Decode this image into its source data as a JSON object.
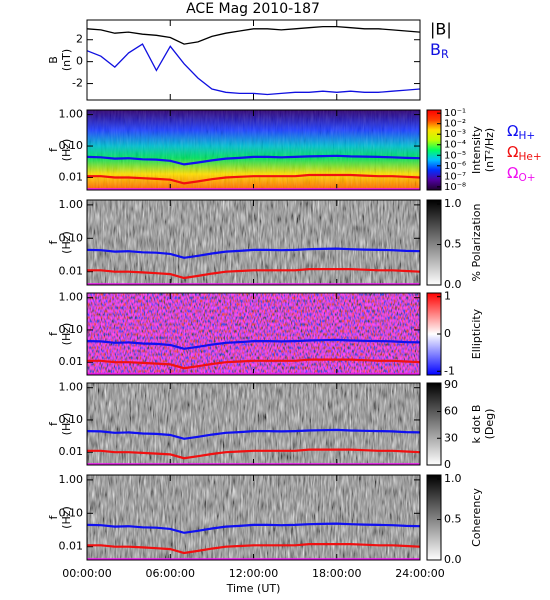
{
  "chart_data": [
    {
      "type": "line",
      "title": "ACE Mag 2010-187",
      "ylabel": [
        "B",
        "(nT)"
      ],
      "xlim": [
        0,
        24
      ],
      "ylim": [
        -3.5,
        3.8
      ],
      "yticks": [
        -2,
        0,
        2
      ],
      "x": [
        0,
        1,
        2,
        3,
        4,
        5,
        6,
        7,
        8,
        9,
        10,
        11,
        12,
        13,
        14,
        15,
        16,
        17,
        18,
        19,
        20,
        21,
        22,
        23,
        24
      ],
      "series": [
        {
          "name": "|B|",
          "color": "#000000",
          "subscript": false,
          "values": [
            3.0,
            2.9,
            2.6,
            2.7,
            2.5,
            2.4,
            2.2,
            1.6,
            1.8,
            2.3,
            2.6,
            2.8,
            3.0,
            3.0,
            2.9,
            3.0,
            3.1,
            3.2,
            3.2,
            3.1,
            3.0,
            3.0,
            2.9,
            2.8,
            2.7
          ]
        },
        {
          "name": "BR",
          "color": "#1010e0",
          "subscript": true,
          "values": [
            1.0,
            0.5,
            -0.5,
            0.8,
            1.6,
            -0.8,
            1.4,
            -0.2,
            -1.5,
            -2.5,
            -2.8,
            -2.9,
            -2.9,
            -3.0,
            -2.9,
            -2.8,
            -2.8,
            -2.7,
            -2.8,
            -2.7,
            -2.8,
            -2.8,
            -2.7,
            -2.6,
            -2.5
          ]
        }
      ]
    },
    {
      "type": "spectrogram",
      "background": "intensity",
      "ylabel": [
        "f",
        "(Hz)"
      ],
      "log_y": true,
      "xlim": [
        0,
        24
      ],
      "ylim": [
        0.004,
        1.4
      ],
      "yticks": [
        {
          "value": 1,
          "label": "1.00"
        },
        {
          "value": 0.1,
          "label": "0.10"
        },
        {
          "value": 0.01,
          "label": "0.01"
        }
      ],
      "x": [
        0,
        1,
        2,
        3,
        4,
        5,
        6,
        7,
        8,
        9,
        10,
        11,
        12,
        13,
        14,
        15,
        16,
        17,
        18,
        19,
        20,
        21,
        22,
        23,
        24
      ],
      "series": [
        {
          "name": "ΩH+",
          "color": "#1010f0",
          "subscript": true,
          "values": [
            0.045,
            0.044,
            0.04,
            0.041,
            0.038,
            0.037,
            0.034,
            0.026,
            0.03,
            0.035,
            0.04,
            0.042,
            0.045,
            0.045,
            0.044,
            0.045,
            0.047,
            0.048,
            0.049,
            0.047,
            0.046,
            0.045,
            0.044,
            0.042,
            0.041
          ]
        },
        {
          "name": "ΩHe+",
          "color": "#f01010",
          "subscript": true,
          "values": [
            0.011,
            0.011,
            0.01,
            0.01,
            0.0095,
            0.009,
            0.0085,
            0.0065,
            0.0075,
            0.0088,
            0.01,
            0.0105,
            0.011,
            0.011,
            0.011,
            0.011,
            0.012,
            0.012,
            0.012,
            0.012,
            0.0115,
            0.011,
            0.011,
            0.0105,
            0.01
          ]
        },
        {
          "name": "ΩO+",
          "color": "#f010f0",
          "subscript": true,
          "values": [
            0.0042,
            0.0042,
            0.0042,
            0.0042,
            0.0042,
            0.0042,
            0.0042,
            0.0042,
            0.0042,
            0.0042,
            0.0042,
            0.0042,
            0.0042,
            0.0042,
            0.0042,
            0.0042,
            0.0042,
            0.0042,
            0.0042,
            0.0042,
            0.0042,
            0.0042,
            0.0042,
            0.0042,
            0.0042
          ]
        }
      ],
      "colorbar": {
        "label": [
          "Intensity",
          "(nT²/Hz)"
        ],
        "log": true,
        "lim": [
          5e-09,
          0.2
        ],
        "colors": [
          "#200030",
          "#5000a0",
          "#0030ff",
          "#00c0ff",
          "#00ff60",
          "#c0ff00",
          "#ffe000",
          "#ff4000",
          "#ff0000"
        ],
        "ticks": [
          {
            "value": 0.1,
            "label": "10⁻¹"
          },
          {
            "value": 0.01,
            "label": "10⁻²"
          },
          {
            "value": 0.001,
            "label": "10⁻³"
          },
          {
            "value": 0.0001,
            "label": "10⁻⁴"
          },
          {
            "value": 1e-05,
            "label": "10⁻⁵"
          },
          {
            "value": 1e-06,
            "label": "10⁻⁶"
          },
          {
            "value": 1e-07,
            "label": "10⁻⁷"
          },
          {
            "value": 1e-08,
            "label": "10⁻⁸"
          }
        ]
      }
    },
    {
      "type": "spectrogram",
      "background": "gray",
      "ylabel": [
        "f",
        "(Hz)"
      ],
      "log_y": true,
      "xlim": [
        0,
        24
      ],
      "ylim": [
        0.004,
        1.4
      ],
      "yticks": [
        {
          "value": 1,
          "label": "1.00"
        },
        {
          "value": 0.1,
          "label": "0.10"
        },
        {
          "value": 0.01,
          "label": "0.01"
        }
      ],
      "colorbar": {
        "label": [
          "% Polarization"
        ],
        "log": false,
        "lim": [
          0,
          1.05
        ],
        "colors": [
          "#ffffff",
          "#000000"
        ],
        "ticks": [
          {
            "value": 0,
            "label": "0.0"
          },
          {
            "value": 0.5,
            "label": "0.5"
          },
          {
            "value": 1,
            "label": "1.0"
          }
        ]
      }
    },
    {
      "type": "spectrogram",
      "background": "ellipticity",
      "ylabel": [
        "f",
        "(Hz)"
      ],
      "log_y": true,
      "xlim": [
        0,
        24
      ],
      "ylim": [
        0.004,
        1.4
      ],
      "yticks": [
        {
          "value": 1,
          "label": "1.00"
        },
        {
          "value": 0.1,
          "label": "0.10"
        },
        {
          "value": 0.01,
          "label": "0.01"
        }
      ],
      "colorbar": {
        "label": [
          "Ellipticity"
        ],
        "log": false,
        "lim": [
          -1.1,
          1.1
        ],
        "colors": [
          "#0000ff",
          "#ffffff",
          "#ff0000"
        ],
        "ticks": [
          -1,
          0,
          1
        ]
      }
    },
    {
      "type": "spectrogram",
      "background": "gray",
      "ylabel": [
        "f",
        "(Hz)"
      ],
      "log_y": true,
      "xlim": [
        0,
        24
      ],
      "ylim": [
        0.004,
        1.4
      ],
      "yticks": [
        {
          "value": 1,
          "label": "1.00"
        },
        {
          "value": 0.1,
          "label": "0.10"
        },
        {
          "value": 0.01,
          "label": "0.01"
        }
      ],
      "colorbar": {
        "label": [
          "k dot B",
          "(Deg)"
        ],
        "log": false,
        "lim": [
          0,
          92
        ],
        "colors": [
          "#ffffff",
          "#000000"
        ],
        "ticks": [
          0,
          30,
          60,
          90
        ]
      }
    },
    {
      "type": "spectrogram",
      "background": "gray",
      "ylabel": [
        "f",
        "(Hz)"
      ],
      "log_y": true,
      "xlim": [
        0,
        24
      ],
      "ylim": [
        0.004,
        1.4
      ],
      "yticks": [
        {
          "value": 1,
          "label": "1.00"
        },
        {
          "value": 0.1,
          "label": "0.10"
        },
        {
          "value": 0.01,
          "label": "0.01"
        }
      ],
      "xlabel": "Time (UT)",
      "xticks": [
        {
          "value": 0,
          "label": "00:00:00"
        },
        {
          "value": 6,
          "label": "06:00:00"
        },
        {
          "value": 12,
          "label": "12:00:00"
        },
        {
          "value": 18,
          "label": "18:00:00"
        },
        {
          "value": 24,
          "label": "24:00:00"
        }
      ],
      "colorbar": {
        "label": [
          "Coherency"
        ],
        "log": false,
        "lim": [
          0,
          1.05
        ],
        "colors": [
          "#ffffff",
          "#000000"
        ],
        "ticks": [
          {
            "value": 0,
            "label": "0.0"
          },
          {
            "value": 0.5,
            "label": "0.5"
          },
          {
            "value": 1,
            "label": "1.0"
          }
        ]
      }
    }
  ]
}
